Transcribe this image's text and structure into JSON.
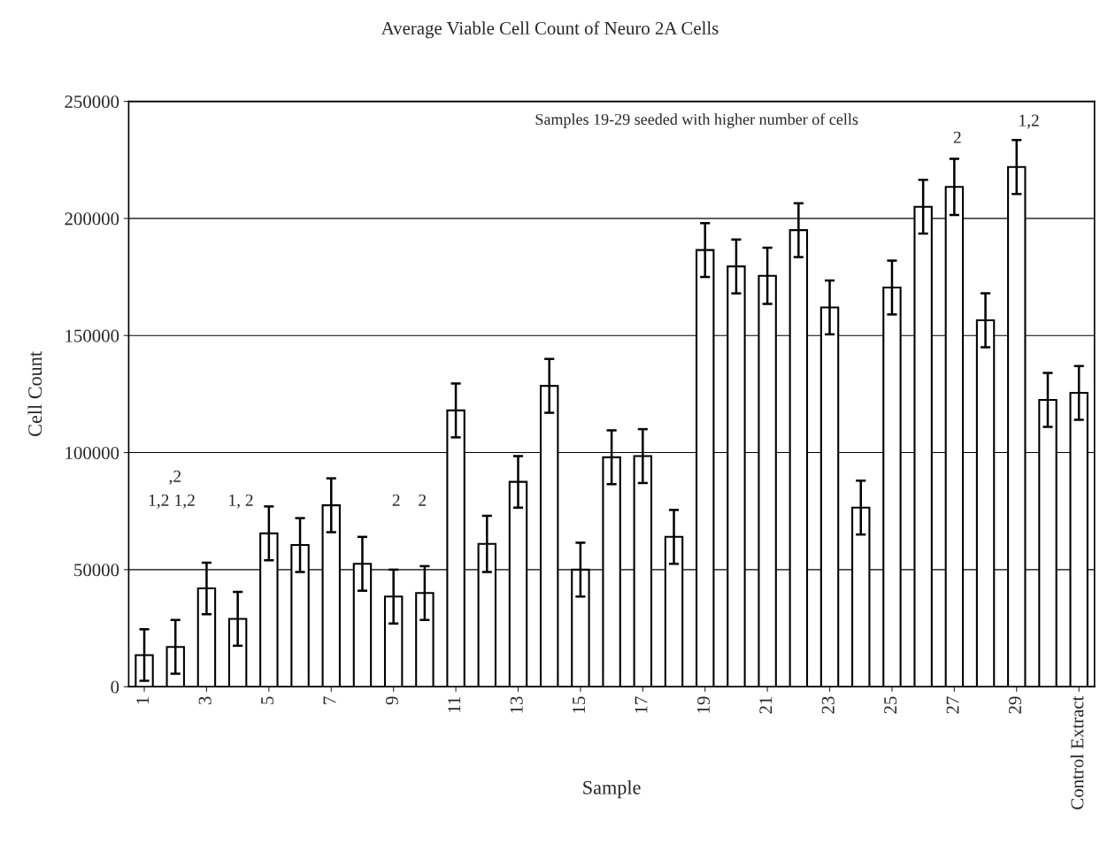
{
  "chart_data": {
    "type": "bar",
    "title": "Average Viable Cell Count of Neuro 2A Cells",
    "xlabel": "Sample",
    "ylabel": "Cell Count",
    "x": [
      1,
      2,
      3,
      4,
      5,
      6,
      7,
      8,
      9,
      10,
      11,
      12,
      13,
      14,
      15,
      16,
      17,
      18,
      19,
      20,
      21,
      22,
      23,
      24,
      25,
      26,
      27,
      28,
      29,
      30,
      31
    ],
    "values": [
      13500,
      17000,
      42000,
      29000,
      65500,
      60500,
      77500,
      52500,
      38500,
      40000,
      118000,
      61000,
      87500,
      128500,
      50000,
      98000,
      98500,
      64000,
      186500,
      179500,
      175500,
      195000,
      162000,
      76500,
      170500,
      205000,
      213500,
      156500,
      222000,
      122500,
      125500
    ],
    "errors": [
      11000,
      11500,
      11000,
      11500,
      11500,
      11500,
      11500,
      11500,
      11500,
      11500,
      11500,
      12000,
      11000,
      11500,
      11500,
      11500,
      11500,
      11500,
      11500,
      11500,
      12000,
      11500,
      11500,
      11500,
      11500,
      11500,
      12000,
      11500,
      11500,
      11500,
      11500
    ],
    "color": "#ffffff",
    "xlim": [
      0.5,
      31.5
    ],
    "xticks": [
      1,
      3,
      5,
      7,
      9,
      11,
      13,
      15,
      17,
      19,
      21,
      23,
      25,
      27,
      29,
      {
        "value": 31,
        "label": "Control Extract"
      }
    ],
    "ylim": [
      0,
      250000
    ],
    "yticks": [
      0,
      50000,
      100000,
      150000,
      200000,
      250000
    ],
    "grid": "y",
    "annotations": [
      "Samples 19-29 seeded with higher number of cells",
      "1,2",
      ",2",
      "1,2",
      "1, 2",
      "2",
      "2",
      "2",
      "1,2"
    ]
  }
}
